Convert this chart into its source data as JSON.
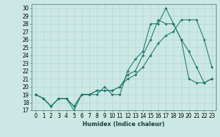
{
  "xlabel": "Humidex (Indice chaleur)",
  "xlim": [
    -0.5,
    23.5
  ],
  "ylim": [
    17,
    30.5
  ],
  "yticks": [
    17,
    18,
    19,
    20,
    21,
    22,
    23,
    24,
    25,
    26,
    27,
    28,
    29,
    30
  ],
  "xticks": [
    0,
    1,
    2,
    3,
    4,
    5,
    6,
    7,
    8,
    9,
    10,
    11,
    12,
    13,
    14,
    15,
    16,
    17,
    18,
    19,
    20,
    21,
    22,
    23
  ],
  "bg_color": "#cce8e4",
  "line_color": "#1a7a6e",
  "grid_color": "#b8d8d4",
  "line1_x": [
    0,
    1,
    2,
    3,
    4,
    5,
    6,
    7,
    8,
    9,
    10,
    11,
    12,
    13,
    14,
    15,
    16,
    17,
    18,
    19,
    20,
    21,
    22,
    23
  ],
  "line1_y": [
    19,
    18.5,
    17.5,
    18.5,
    18.5,
    17,
    19,
    19,
    19,
    20,
    19,
    19,
    22,
    23.5,
    24.5,
    28,
    28,
    30,
    28,
    26,
    24.5,
    22.5,
    20.5,
    21
  ],
  "line2_x": [
    0,
    1,
    2,
    3,
    4,
    5,
    6,
    7,
    8,
    9,
    10,
    11,
    12,
    13,
    14,
    15,
    16,
    17,
    18,
    19,
    20,
    21,
    22,
    23
  ],
  "line2_y": [
    19,
    18.5,
    17.5,
    18.5,
    18.5,
    17.5,
    19,
    19,
    19.5,
    19.5,
    19.5,
    20,
    21.5,
    22,
    24,
    26,
    28.5,
    28,
    28,
    26,
    21,
    20.5,
    20.5,
    21
  ],
  "line3_x": [
    0,
    1,
    2,
    3,
    4,
    5,
    6,
    7,
    8,
    9,
    10,
    11,
    12,
    13,
    14,
    15,
    16,
    17,
    18,
    19,
    20,
    21,
    22,
    23
  ],
  "line3_y": [
    19,
    18.5,
    17.5,
    18.5,
    18.5,
    17.5,
    19,
    19,
    19.5,
    19.5,
    19.5,
    20,
    21,
    21.5,
    22.5,
    24,
    25.5,
    26.5,
    27,
    28.5,
    28.5,
    28.5,
    26,
    22.5
  ],
  "tick_fontsize": 5.5,
  "xlabel_fontsize": 6.0
}
